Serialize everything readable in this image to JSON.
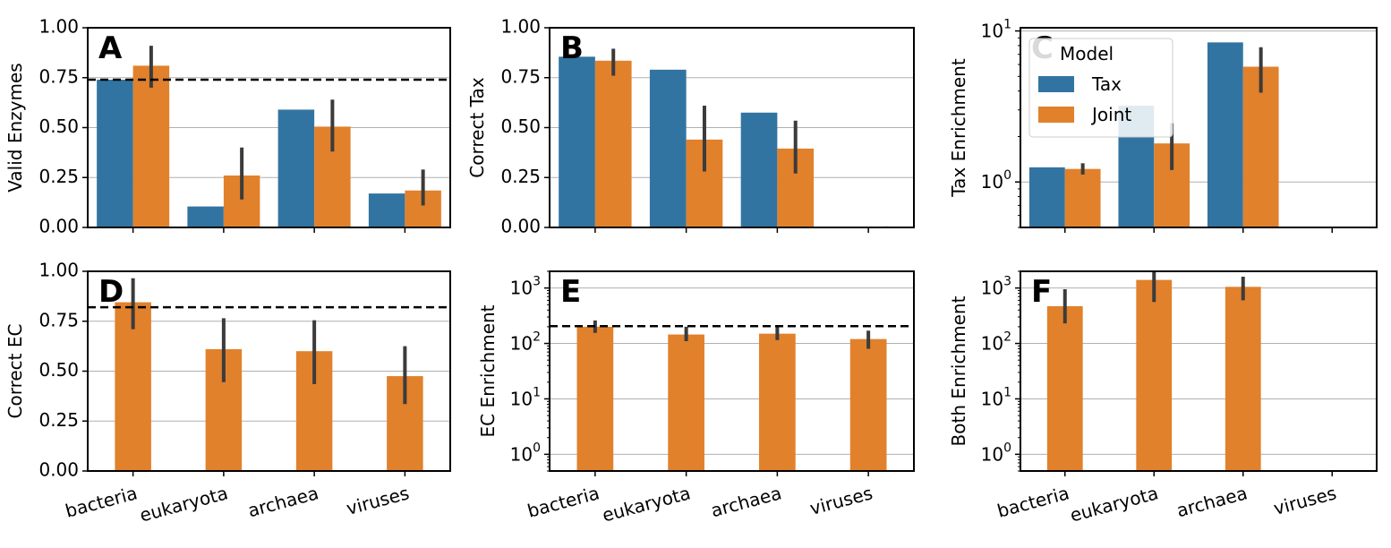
{
  "colors": {
    "tax": "#3274a1",
    "joint": "#e1812c",
    "err": "#3b3b3b",
    "grid": "#b0b0b0"
  },
  "legend": {
    "title": "Model",
    "entries": [
      "Tax",
      "Joint"
    ],
    "placement": "upper-left of panel C"
  },
  "chart_data": [
    {
      "id": "A",
      "type": "bar",
      "scale": "linear",
      "ylabel": "Valid Enzymes",
      "ylim": [
        0,
        1
      ],
      "yticks": [
        "0.00",
        "0.25",
        "0.50",
        "0.75",
        "1.00"
      ],
      "categories": [
        "bacteria",
        "eukaryota",
        "archaea",
        "viruses"
      ],
      "series": [
        {
          "name": "Tax",
          "values": [
            0.74,
            0.105,
            0.59,
            0.17
          ]
        },
        {
          "name": "Joint",
          "values": [
            0.81,
            0.26,
            0.505,
            0.185
          ],
          "err_low": [
            0.7,
            0.14,
            0.38,
            0.11
          ],
          "err_high": [
            0.91,
            0.4,
            0.64,
            0.29
          ]
        }
      ],
      "reference_line": 0.74,
      "show_xticklabels": false
    },
    {
      "id": "B",
      "type": "bar",
      "scale": "linear",
      "ylabel": "Correct Tax",
      "ylim": [
        0,
        1
      ],
      "yticks": [
        "0.00",
        "0.25",
        "0.50",
        "0.75",
        "1.00"
      ],
      "categories": [
        "bacteria",
        "eukaryota",
        "archaea",
        "viruses"
      ],
      "series": [
        {
          "name": "Tax",
          "values": [
            0.855,
            0.79,
            0.575,
            0
          ]
        },
        {
          "name": "Joint",
          "values": [
            0.835,
            0.44,
            0.395,
            0.002
          ],
          "err_low": [
            0.76,
            0.28,
            0.27,
            0.0
          ],
          "err_high": [
            0.895,
            0.61,
            0.535,
            0.005
          ]
        }
      ],
      "show_xticklabels": false
    },
    {
      "id": "C",
      "type": "bar",
      "scale": "log",
      "ylabel": "Tax Enrichment",
      "ylim": [
        0.5,
        10.5
      ],
      "categories": [
        "bacteria",
        "eukaryota",
        "archaea",
        "viruses"
      ],
      "series": [
        {
          "name": "Tax",
          "values": [
            1.25,
            3.2,
            8.4,
            null
          ]
        },
        {
          "name": "Joint",
          "values": [
            1.22,
            1.8,
            5.8,
            null
          ],
          "err_low": [
            1.12,
            1.2,
            3.9,
            null
          ],
          "err_high": [
            1.33,
            2.45,
            7.8,
            null
          ]
        }
      ],
      "show_xticklabels": false,
      "show_legend": true
    },
    {
      "id": "D",
      "type": "bar",
      "scale": "linear",
      "ylabel": "Correct EC",
      "ylim": [
        0,
        1
      ],
      "yticks": [
        "0.00",
        "0.25",
        "0.50",
        "0.75",
        "1.00"
      ],
      "categories": [
        "bacteria",
        "eukaryota",
        "archaea",
        "viruses"
      ],
      "series": [
        {
          "name": "Joint",
          "values": [
            0.845,
            0.61,
            0.6,
            0.475
          ],
          "err_low": [
            0.71,
            0.445,
            0.435,
            0.335
          ],
          "err_high": [
            0.965,
            0.765,
            0.755,
            0.625
          ]
        }
      ],
      "reference_line": 0.82,
      "show_xticklabels": true
    },
    {
      "id": "E",
      "type": "bar",
      "scale": "log",
      "ylabel": "EC Enrichment",
      "ylim": [
        0.5,
        2000
      ],
      "categories": [
        "bacteria",
        "eukaryota",
        "archaea",
        "viruses"
      ],
      "series": [
        {
          "name": "Joint",
          "values": [
            200,
            145,
            150,
            120
          ],
          "err_low": [
            155,
            110,
            115,
            80
          ],
          "err_high": [
            260,
            200,
            205,
            170
          ]
        }
      ],
      "reference_line": 205,
      "show_xticklabels": true
    },
    {
      "id": "F",
      "type": "bar",
      "scale": "log",
      "ylabel": "Both Enrichment",
      "ylim": [
        0.5,
        2000
      ],
      "categories": [
        "bacteria",
        "eukaryota",
        "archaea",
        "viruses"
      ],
      "series": [
        {
          "name": "Joint",
          "values": [
            470,
            1400,
            1050,
            null
          ],
          "err_low": [
            230,
            560,
            600,
            null
          ],
          "err_high": [
            950,
            2000,
            1600,
            null
          ]
        }
      ],
      "show_xticklabels": true
    }
  ]
}
